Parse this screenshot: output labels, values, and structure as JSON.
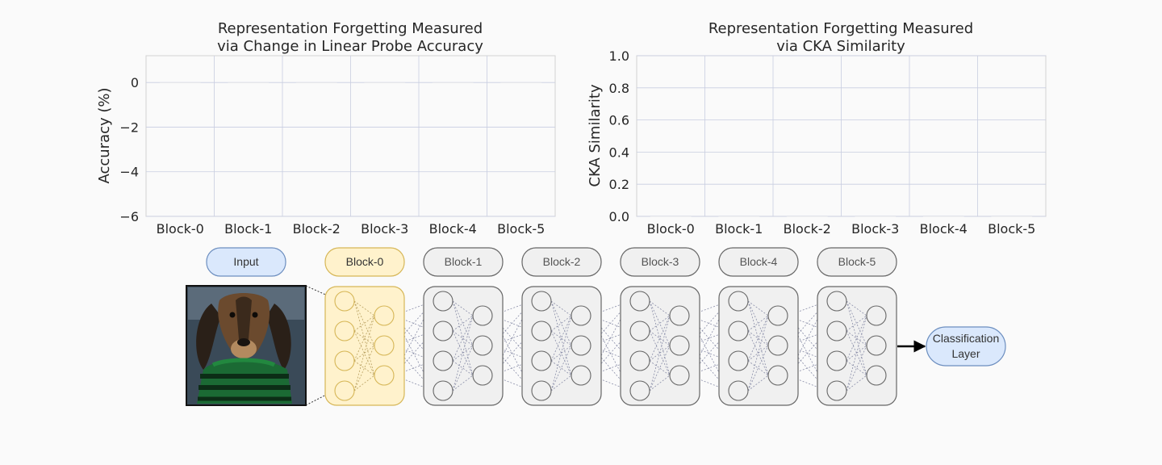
{
  "chart_data": [
    {
      "type": "bar",
      "title_lines": [
        "Representation Forgetting Measured",
        "via Change in Linear Probe Accuracy"
      ],
      "ylabel": "Accuracy (%)",
      "categories": [
        "Block-0",
        "Block-1",
        "Block-2",
        "Block-3",
        "Block-4",
        "Block-5"
      ],
      "values": [
        0,
        0,
        0,
        0,
        0,
        0
      ],
      "ylim": [
        -6,
        1.2
      ],
      "yticks": [
        0,
        -2,
        -4,
        -6
      ],
      "ytick_labels": [
        "0",
        "−2",
        "−4",
        "−6"
      ],
      "grid": true
    },
    {
      "type": "bar",
      "title_lines": [
        "Representation Forgetting Measured",
        "via CKA Similarity"
      ],
      "ylabel": "CKA Similarity",
      "categories": [
        "Block-0",
        "Block-1",
        "Block-2",
        "Block-3",
        "Block-4",
        "Block-5"
      ],
      "values": [
        0,
        0,
        0,
        0,
        0,
        0
      ],
      "ylim": [
        0,
        1.0
      ],
      "yticks": [
        0.0,
        0.2,
        0.4,
        0.6,
        0.8,
        1.0
      ],
      "ytick_labels": [
        "0.0",
        "0.2",
        "0.4",
        "0.6",
        "0.8",
        "1.0"
      ],
      "grid": true
    }
  ],
  "diagram": {
    "input_label": "Input",
    "block_labels": [
      "Block-0",
      "Block-1",
      "Block-2",
      "Block-3",
      "Block-4",
      "Block-5"
    ],
    "highlighted_block": "Block-0",
    "output_label_lines": [
      "Classification",
      "Layer"
    ],
    "colors": {
      "input_fill": "#dae8fc",
      "input_stroke": "#6c8ebf",
      "highlight_fill": "#fff2cc",
      "highlight_stroke": "#d6b656",
      "block_fill": "#f0f0f0",
      "block_stroke": "#666666"
    },
    "input_image": "dachshund-in-green-striped-sweater"
  }
}
